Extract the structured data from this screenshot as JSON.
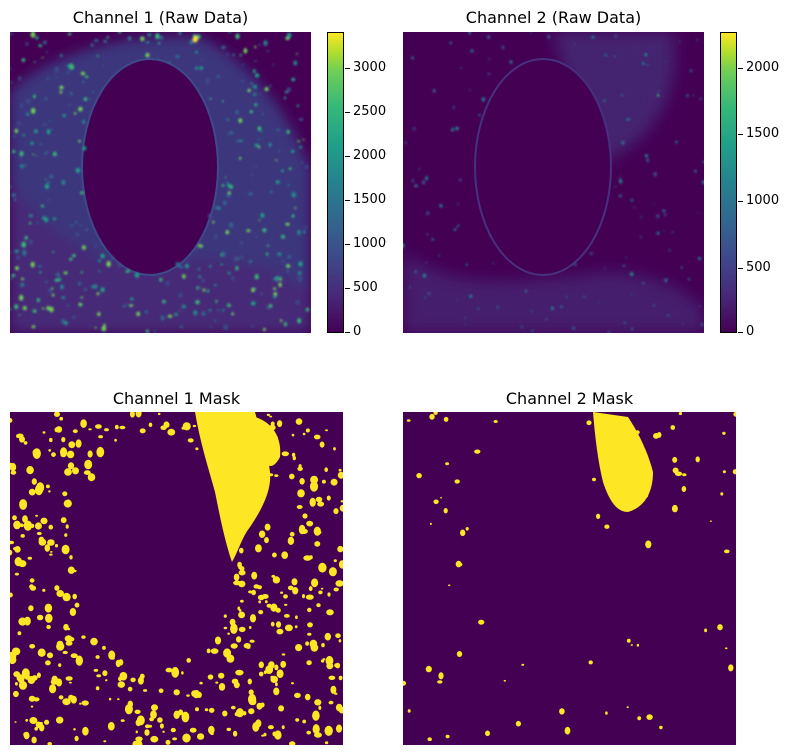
{
  "panels": {
    "ch1_raw": {
      "title": "Channel 1 (Raw Data)"
    },
    "ch2_raw": {
      "title": "Channel 2 (Raw Data)"
    },
    "ch1_mask": {
      "title": "Channel 1 Mask"
    },
    "ch2_mask": {
      "title": "Channel 2 Mask"
    }
  },
  "colorbars": {
    "ch1": {
      "ticks": [
        "0",
        "500",
        "1000",
        "1500",
        "2000",
        "2500",
        "3000"
      ],
      "max": 3400
    },
    "ch2": {
      "ticks": [
        "0",
        "500",
        "1000",
        "1500",
        "2000"
      ],
      "max": 2250
    }
  },
  "colors": {
    "viridis_low": "#440154",
    "viridis_mid": "#21918c",
    "viridis_high": "#fde725",
    "mask_bg": "#440154",
    "mask_fg": "#fde725"
  }
}
